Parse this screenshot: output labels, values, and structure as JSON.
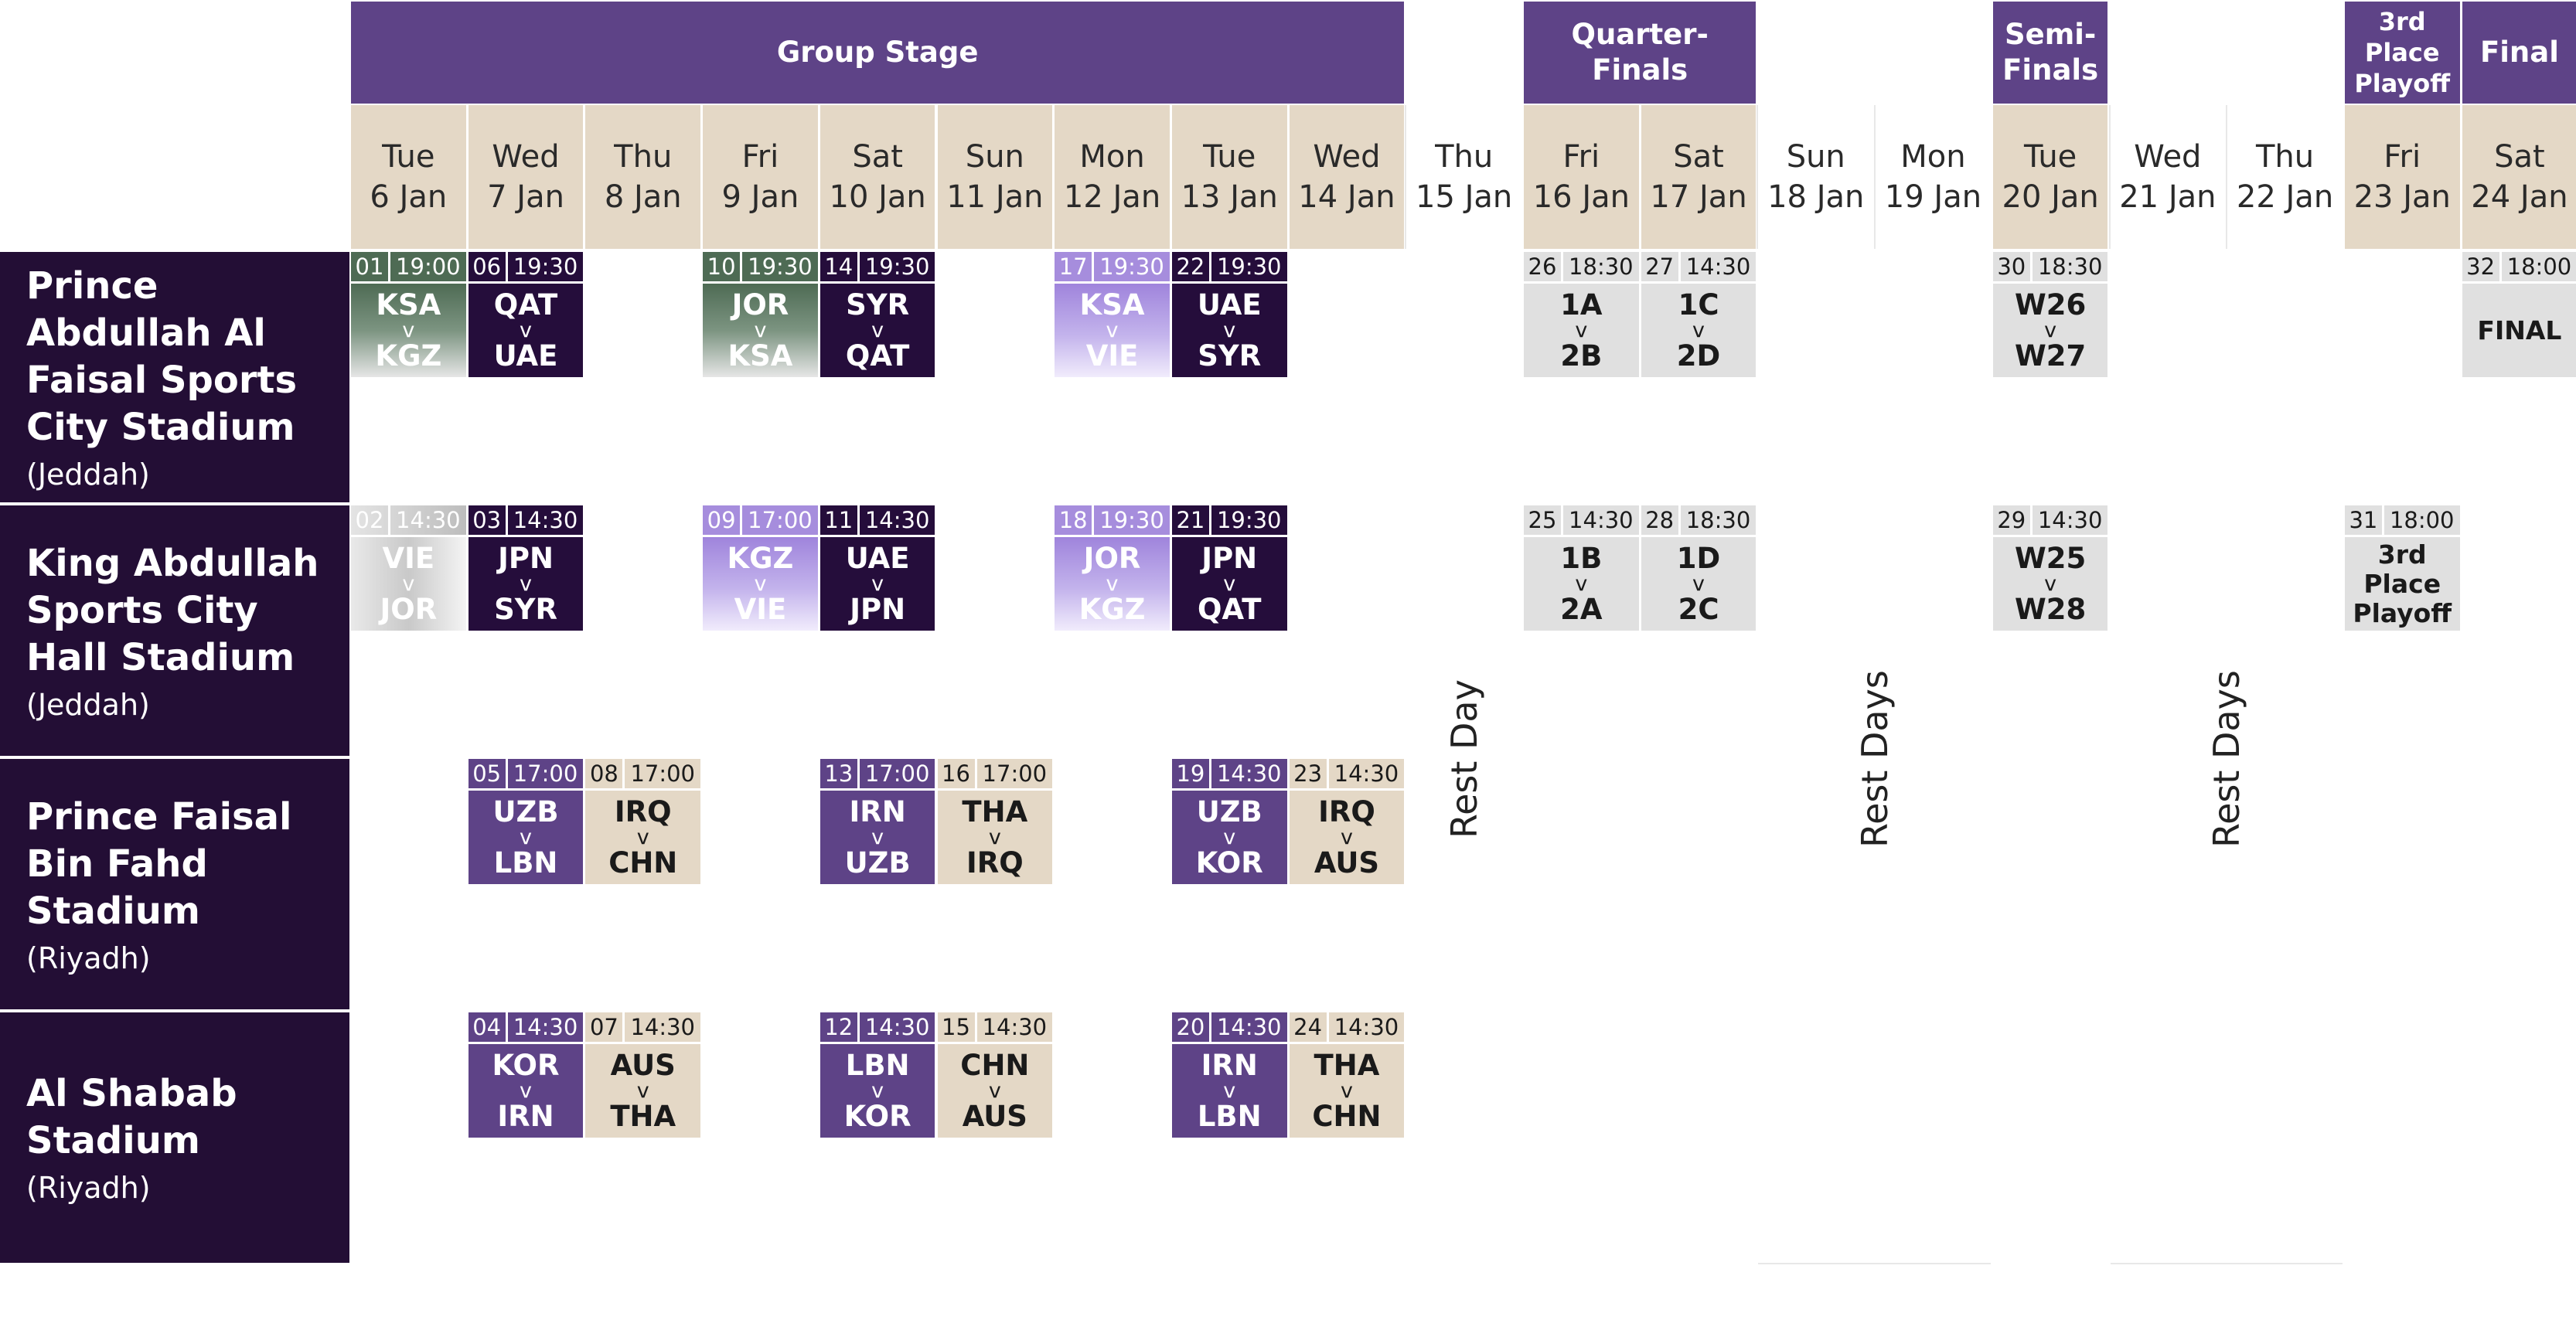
{
  "stages": [
    {
      "label": "Group Stage",
      "col_start": 0,
      "col_end": 8
    },
    {
      "label": "Quarter-\nFinals",
      "col_start": 10,
      "col_end": 11
    },
    {
      "label": "Semi-\nFinals",
      "col_start": 14,
      "col_end": 14
    },
    {
      "label": "3rd Place\nPlayoff",
      "col_start": 17,
      "col_end": 17,
      "small": true
    },
    {
      "label": "Final",
      "col_start": 18,
      "col_end": 18
    }
  ],
  "days": [
    {
      "weekday": "Tue",
      "date": "6 Jan",
      "tan": true
    },
    {
      "weekday": "Wed",
      "date": "7 Jan",
      "tan": true
    },
    {
      "weekday": "Thu",
      "date": "8 Jan",
      "tan": true
    },
    {
      "weekday": "Fri",
      "date": "9 Jan",
      "tan": true
    },
    {
      "weekday": "Sat",
      "date": "10 Jan",
      "tan": true
    },
    {
      "weekday": "Sun",
      "date": "11 Jan",
      "tan": true
    },
    {
      "weekday": "Mon",
      "date": "12 Jan",
      "tan": true
    },
    {
      "weekday": "Tue",
      "date": "13 Jan",
      "tan": true
    },
    {
      "weekday": "Wed",
      "date": "14 Jan",
      "tan": true
    },
    {
      "weekday": "Thu",
      "date": "15 Jan",
      "tan": false
    },
    {
      "weekday": "Fri",
      "date": "16 Jan",
      "tan": true
    },
    {
      "weekday": "Sat",
      "date": "17 Jan",
      "tan": true
    },
    {
      "weekday": "Sun",
      "date": "18 Jan",
      "tan": false
    },
    {
      "weekday": "Mon",
      "date": "19 Jan",
      "tan": false
    },
    {
      "weekday": "Tue",
      "date": "20 Jan",
      "tan": true
    },
    {
      "weekday": "Wed",
      "date": "21 Jan",
      "tan": false
    },
    {
      "weekday": "Thu",
      "date": "22 Jan",
      "tan": false
    },
    {
      "weekday": "Fri",
      "date": "23 Jan",
      "tan": true
    },
    {
      "weekday": "Sat",
      "date": "24 Jan",
      "tan": true
    }
  ],
  "venues": [
    {
      "name": "Prince Abdullah Al Faisal Sports City Stadium",
      "city": "(Jeddah)"
    },
    {
      "name": "King Abdullah Sports City Hall Stadium",
      "city": "(Jeddah)"
    },
    {
      "name": "Prince Faisal Bin Fahd Stadium",
      "city": "(Riyadh)"
    },
    {
      "name": "Al Shabab Stadium",
      "city": "(Riyadh)"
    }
  ],
  "rest_labels": [
    {
      "text": "Rest Day",
      "col_start": 9,
      "col_end": 9
    },
    {
      "text": "Rest Days",
      "col_start": 12,
      "col_end": 13
    },
    {
      "text": "Rest Days",
      "col_start": 15,
      "col_end": 16
    }
  ],
  "colors": {
    "stage": "#5e4387",
    "venue": "#230e35",
    "tan": "#e4d8c6",
    "dark": "#250d3b",
    "purple": "#5e4387",
    "light_purple": "#b5a0e6",
    "green": "#4e6b54",
    "grey": "#e0e0e0"
  },
  "matches": [
    {
      "venue": 0,
      "col": 0,
      "num": "01",
      "time": "19:00",
      "home": "KSA",
      "away": "KGZ",
      "style": "green"
    },
    {
      "venue": 0,
      "col": 1,
      "num": "06",
      "time": "19:30",
      "home": "QAT",
      "away": "UAE",
      "style": "dark"
    },
    {
      "venue": 0,
      "col": 3,
      "num": "10",
      "time": "19:30",
      "home": "JOR",
      "away": "KSA",
      "style": "green"
    },
    {
      "venue": 0,
      "col": 4,
      "num": "14",
      "time": "19:30",
      "home": "SYR",
      "away": "QAT",
      "style": "dark"
    },
    {
      "venue": 0,
      "col": 6,
      "num": "17",
      "time": "19:30",
      "home": "KSA",
      "away": "VIE",
      "style": "lightpurple"
    },
    {
      "venue": 0,
      "col": 7,
      "num": "22",
      "time": "19:30",
      "home": "UAE",
      "away": "SYR",
      "style": "dark"
    },
    {
      "venue": 0,
      "col": 10,
      "num": "26",
      "time": "18:30",
      "home": "1A",
      "away": "2B",
      "style": "grey"
    },
    {
      "venue": 0,
      "col": 11,
      "num": "27",
      "time": "14:30",
      "home": "1C",
      "away": "2D",
      "style": "grey"
    },
    {
      "venue": 0,
      "col": 14,
      "num": "30",
      "time": "18:30",
      "home": "W26",
      "away": "W27",
      "style": "grey"
    },
    {
      "venue": 0,
      "col": 18,
      "num": "32",
      "time": "18:00",
      "label": "FINAL",
      "style": "grey"
    },
    {
      "venue": 1,
      "col": 0,
      "num": "02",
      "time": "14:30",
      "home": "VIE",
      "away": "JOR",
      "style": "faded"
    },
    {
      "venue": 1,
      "col": 1,
      "num": "03",
      "time": "14:30",
      "home": "JPN",
      "away": "SYR",
      "style": "dark"
    },
    {
      "venue": 1,
      "col": 3,
      "num": "09",
      "time": "17:00",
      "home": "KGZ",
      "away": "VIE",
      "style": "lightpurple"
    },
    {
      "venue": 1,
      "col": 4,
      "num": "11",
      "time": "14:30",
      "home": "UAE",
      "away": "JPN",
      "style": "dark"
    },
    {
      "venue": 1,
      "col": 6,
      "num": "18",
      "time": "19:30",
      "home": "JOR",
      "away": "KGZ",
      "style": "lightpurple"
    },
    {
      "venue": 1,
      "col": 7,
      "num": "21",
      "time": "19:30",
      "home": "JPN",
      "away": "QAT",
      "style": "dark"
    },
    {
      "venue": 1,
      "col": 10,
      "num": "25",
      "time": "14:30",
      "home": "1B",
      "away": "2A",
      "style": "grey"
    },
    {
      "venue": 1,
      "col": 11,
      "num": "28",
      "time": "18:30",
      "home": "1D",
      "away": "2C",
      "style": "grey"
    },
    {
      "venue": 1,
      "col": 14,
      "num": "29",
      "time": "14:30",
      "home": "W25",
      "away": "W28",
      "style": "grey"
    },
    {
      "venue": 1,
      "col": 17,
      "num": "31",
      "time": "18:00",
      "label": "3rd Place Playoff",
      "style": "grey"
    },
    {
      "venue": 2,
      "col": 1,
      "num": "05",
      "time": "17:00",
      "home": "UZB",
      "away": "LBN",
      "style": "purple"
    },
    {
      "venue": 2,
      "col": 2,
      "num": "08",
      "time": "17:00",
      "home": "IRQ",
      "away": "CHN",
      "style": "tan"
    },
    {
      "venue": 2,
      "col": 4,
      "num": "13",
      "time": "17:00",
      "home": "IRN",
      "away": "UZB",
      "style": "purple"
    },
    {
      "venue": 2,
      "col": 5,
      "num": "16",
      "time": "17:00",
      "home": "THA",
      "away": "IRQ",
      "style": "tan"
    },
    {
      "venue": 2,
      "col": 7,
      "num": "19",
      "time": "14:30",
      "home": "UZB",
      "away": "KOR",
      "style": "purple"
    },
    {
      "venue": 2,
      "col": 8,
      "num": "23",
      "time": "14:30",
      "home": "IRQ",
      "away": "AUS",
      "style": "tan"
    },
    {
      "venue": 3,
      "col": 1,
      "num": "04",
      "time": "14:30",
      "home": "KOR",
      "away": "IRN",
      "style": "purple"
    },
    {
      "venue": 3,
      "col": 2,
      "num": "07",
      "time": "14:30",
      "home": "AUS",
      "away": "THA",
      "style": "tan"
    },
    {
      "venue": 3,
      "col": 4,
      "num": "12",
      "time": "14:30",
      "home": "LBN",
      "away": "KOR",
      "style": "purple"
    },
    {
      "venue": 3,
      "col": 5,
      "num": "15",
      "time": "14:30",
      "home": "CHN",
      "away": "AUS",
      "style": "tan"
    },
    {
      "venue": 3,
      "col": 7,
      "num": "20",
      "time": "14:30",
      "home": "IRN",
      "away": "LBN",
      "style": "purple"
    },
    {
      "venue": 3,
      "col": 8,
      "num": "24",
      "time": "14:30",
      "home": "THA",
      "away": "CHN",
      "style": "tan"
    }
  ]
}
